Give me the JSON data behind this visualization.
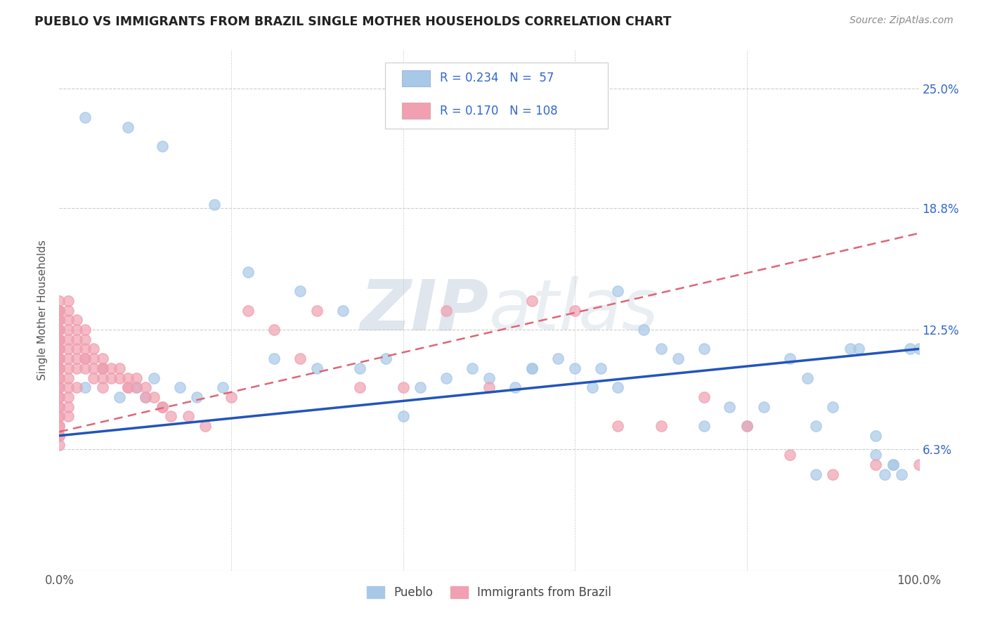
{
  "title": "PUEBLO VS IMMIGRANTS FROM BRAZIL SINGLE MOTHER HOUSEHOLDS CORRELATION CHART",
  "source": "Source: ZipAtlas.com",
  "ylabel": "Single Mother Households",
  "xlim": [
    0,
    100
  ],
  "ylim": [
    0,
    27
  ],
  "ytick_vals": [
    6.3,
    12.5,
    18.8,
    25.0
  ],
  "ytick_labels": [
    "6.3%",
    "12.5%",
    "18.8%",
    "25.0%"
  ],
  "xtick_vals": [
    0,
    100
  ],
  "xtick_labels": [
    "0.0%",
    "100.0%"
  ],
  "pueblo_color": "#a8c8e8",
  "brazil_color": "#f0a0b0",
  "pueblo_line_color": "#2255bb",
  "brazil_line_color": "#dd6677",
  "watermark_color": "#d0dcea",
  "legend_color": "#3366cc",
  "pueblo_trend": [
    7.0,
    11.5
  ],
  "brazil_trend": [
    7.2,
    17.5
  ],
  "pueblo_x": [
    3,
    8,
    12,
    18,
    22,
    28,
    33,
    35,
    38,
    42,
    45,
    48,
    50,
    53,
    55,
    58,
    60,
    62,
    63,
    65,
    68,
    70,
    72,
    75,
    78,
    80,
    82,
    85,
    87,
    88,
    90,
    92,
    93,
    95,
    96,
    97,
    98,
    99,
    100,
    5,
    7,
    9,
    11,
    14,
    16,
    19,
    25,
    30,
    40,
    55,
    65,
    75,
    88,
    95,
    97,
    3,
    10
  ],
  "pueblo_y": [
    23.5,
    23.0,
    22.0,
    19.0,
    15.5,
    14.5,
    13.5,
    10.5,
    11.0,
    9.5,
    10.0,
    10.5,
    10.0,
    9.5,
    10.5,
    11.0,
    10.5,
    9.5,
    10.5,
    14.5,
    12.5,
    11.5,
    11.0,
    11.5,
    8.5,
    7.5,
    8.5,
    11.0,
    10.0,
    7.5,
    8.5,
    11.5,
    11.5,
    7.0,
    5.0,
    5.5,
    5.0,
    11.5,
    11.5,
    10.5,
    9.0,
    9.5,
    10.0,
    9.5,
    9.0,
    9.5,
    11.0,
    10.5,
    8.0,
    10.5,
    9.5,
    7.5,
    5.0,
    6.0,
    5.5,
    9.5,
    9.0
  ],
  "brazil_x": [
    0,
    0,
    0,
    0,
    0,
    0,
    0,
    0,
    0,
    0,
    0,
    0,
    0,
    0,
    0,
    0,
    0,
    0,
    0,
    0,
    0,
    0,
    0,
    0,
    0,
    0,
    0,
    0,
    0,
    0,
    1,
    1,
    1,
    1,
    1,
    1,
    1,
    1,
    1,
    1,
    1,
    1,
    1,
    2,
    2,
    2,
    2,
    2,
    2,
    3,
    3,
    3,
    3,
    3,
    4,
    4,
    4,
    4,
    5,
    5,
    5,
    5,
    6,
    6,
    7,
    7,
    8,
    8,
    9,
    9,
    10,
    10,
    11,
    12,
    13,
    15,
    17,
    20,
    22,
    25,
    28,
    30,
    35,
    40,
    45,
    50,
    55,
    60,
    65,
    70,
    75,
    80,
    85,
    90,
    95,
    100,
    3,
    5,
    8,
    12,
    0,
    0,
    0,
    0,
    0,
    0,
    0,
    2
  ],
  "brazil_y": [
    14.0,
    13.5,
    13.5,
    13.0,
    13.0,
    12.5,
    12.5,
    12.0,
    12.0,
    11.5,
    11.5,
    11.0,
    11.0,
    10.5,
    10.5,
    10.0,
    10.0,
    9.5,
    9.5,
    9.0,
    9.0,
    8.5,
    8.5,
    8.0,
    8.0,
    7.5,
    7.5,
    7.0,
    7.0,
    6.5,
    14.0,
    13.5,
    13.0,
    12.5,
    12.0,
    11.5,
    11.0,
    10.5,
    10.0,
    9.5,
    9.0,
    8.5,
    8.0,
    13.0,
    12.5,
    12.0,
    11.5,
    11.0,
    10.5,
    12.5,
    12.0,
    11.5,
    11.0,
    10.5,
    11.5,
    11.0,
    10.5,
    10.0,
    11.0,
    10.5,
    10.0,
    9.5,
    10.5,
    10.0,
    10.5,
    10.0,
    10.0,
    9.5,
    10.0,
    9.5,
    9.5,
    9.0,
    9.0,
    8.5,
    8.0,
    8.0,
    7.5,
    9.0,
    13.5,
    12.5,
    11.0,
    13.5,
    9.5,
    9.5,
    13.5,
    9.5,
    14.0,
    13.5,
    7.5,
    7.5,
    9.0,
    7.5,
    6.0,
    5.0,
    5.5,
    5.5,
    11.0,
    10.5,
    9.5,
    8.5,
    13.5,
    13.0,
    12.5,
    12.0,
    11.5,
    11.0,
    10.5,
    9.5
  ]
}
